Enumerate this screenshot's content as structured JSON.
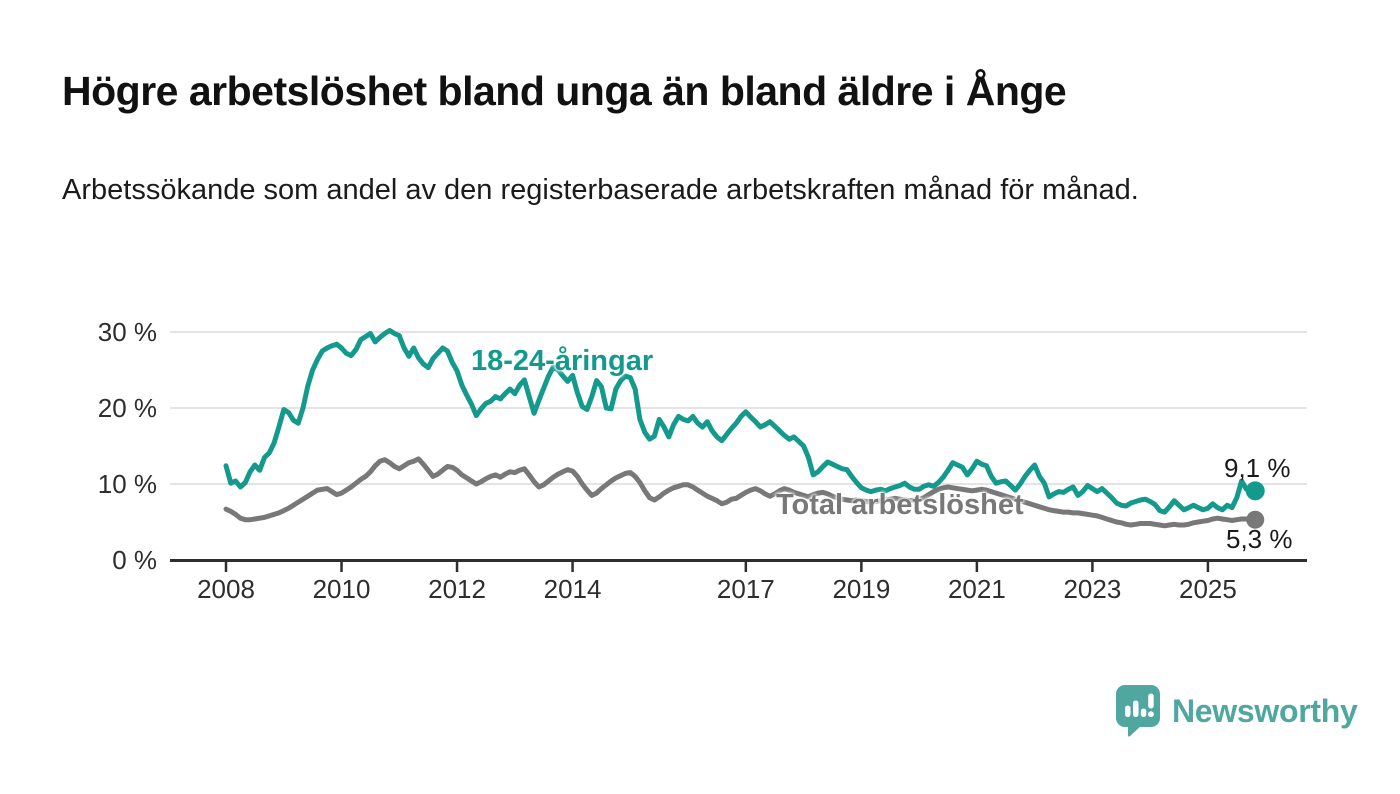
{
  "page": {
    "background": "#ffffff"
  },
  "header": {
    "title": "Högre arbetslöshet bland unga än bland äldre i Ånge",
    "subtitle": "Arbetssökande som andel av den registerbaserade arbetskraften månad för månad."
  },
  "footer": {
    "brand": "Newsworthy",
    "brand_color": "#4FA7A0",
    "logo_icon": "newsworthy-speech-bubble-with-bar-chart-and-exclamation"
  },
  "chart_data": {
    "type": "line",
    "title": "Högre arbetslöshet bland unga än bland äldre i Ånge",
    "xlabel": "",
    "ylabel": "",
    "x_start_year": 2008,
    "x_step_months": 1,
    "x_end_label_period": "2025 (oktober)",
    "grid": "horizontal",
    "legend": "inline-labels",
    "colors": {
      "grid": "#DBDBDB",
      "axis": "#2E2E2E",
      "tick_label": "#2E2E2E",
      "end_label": "#1A1A1A"
    },
    "y_axis": {
      "range": [
        0,
        31.5
      ],
      "ticks": [
        {
          "value": 0,
          "label": "0 %"
        },
        {
          "value": 10,
          "label": "10 %"
        },
        {
          "value": 20,
          "label": "20 %"
        },
        {
          "value": 30,
          "label": "30 %"
        }
      ]
    },
    "x_axis": {
      "ticks": [
        {
          "year": 2008,
          "label": "2008"
        },
        {
          "year": 2010,
          "label": "2010"
        },
        {
          "year": 2012,
          "label": "2012"
        },
        {
          "year": 2014,
          "label": "2014"
        },
        {
          "year": 2017,
          "label": "2017"
        },
        {
          "year": 2019,
          "label": "2019"
        },
        {
          "year": 2021,
          "label": "2021"
        },
        {
          "year": 2023,
          "label": "2023"
        },
        {
          "year": 2025,
          "label": "2025"
        }
      ]
    },
    "series": [
      {
        "name": "18-24-åringar",
        "color": "#149A8C",
        "end_label": "9,1 %",
        "end_value": 9.1,
        "values": [
          12.4,
          10.1,
          10.4,
          9.6,
          10.2,
          11.6,
          12.5,
          11.8,
          13.5,
          14.1,
          15.4,
          17.5,
          19.8,
          19.4,
          18.4,
          18.0,
          20.0,
          22.9,
          25.0,
          26.4,
          27.5,
          27.9,
          28.2,
          28.4,
          27.9,
          27.2,
          26.9,
          27.7,
          29.0,
          29.4,
          29.8,
          28.7,
          29.3,
          29.8,
          30.2,
          29.8,
          29.5,
          27.9,
          26.8,
          27.9,
          26.6,
          25.8,
          25.3,
          26.5,
          27.2,
          27.9,
          27.5,
          26.0,
          24.9,
          23.0,
          21.7,
          20.5,
          19.0,
          19.9,
          20.6,
          20.9,
          21.5,
          21.2,
          21.9,
          22.5,
          21.9,
          23.0,
          23.7,
          21.5,
          19.3,
          21.0,
          22.6,
          24.2,
          25.4,
          25.0,
          24.2,
          23.5,
          24.3,
          22.0,
          20.2,
          19.8,
          21.5,
          23.6,
          22.8,
          20.0,
          19.9,
          22.5,
          23.6,
          24.2,
          24.0,
          22.5,
          18.5,
          16.8,
          15.9,
          16.3,
          18.5,
          17.5,
          16.2,
          17.8,
          18.9,
          18.5,
          18.3,
          18.9,
          18.0,
          17.5,
          18.2,
          17.0,
          16.2,
          15.7,
          16.5,
          17.3,
          18.0,
          18.9,
          19.5,
          18.8,
          18.2,
          17.5,
          17.8,
          18.2,
          17.6,
          17.0,
          16.4,
          15.9,
          16.2,
          15.6,
          15.0,
          13.5,
          11.2,
          11.6,
          12.3,
          12.9,
          12.6,
          12.3,
          12.0,
          11.9,
          11.0,
          10.2,
          9.5,
          9.2,
          9.0,
          9.2,
          9.3,
          9.1,
          9.4,
          9.6,
          9.8,
          10.1,
          9.6,
          9.3,
          9.3,
          9.7,
          9.9,
          9.7,
          10.2,
          10.9,
          11.8,
          12.8,
          12.5,
          12.2,
          11.2,
          12.0,
          13.0,
          12.6,
          12.4,
          11.0,
          10.1,
          10.3,
          10.4,
          9.8,
          9.2,
          10.0,
          11.0,
          11.8,
          12.5,
          11.0,
          10.1,
          8.3,
          8.7,
          9.0,
          8.9,
          9.3,
          9.6,
          8.5,
          9.0,
          9.8,
          9.4,
          9.0,
          9.4,
          8.8,
          8.2,
          7.5,
          7.2,
          7.1,
          7.5,
          7.7,
          7.9,
          8.0,
          7.7,
          7.3,
          6.5,
          6.3,
          7.0,
          7.8,
          7.2,
          6.6,
          6.9,
          7.2,
          6.9,
          6.6,
          6.8,
          7.4,
          6.9,
          6.6,
          7.2,
          6.9,
          8.2,
          10.4,
          9.3,
          9.1
        ]
      },
      {
        "name": "Total arbetslöshet",
        "color": "#787878",
        "end_label": "5,3 %",
        "end_value": 5.3,
        "values": [
          6.7,
          6.4,
          6.0,
          5.5,
          5.3,
          5.3,
          5.4,
          5.5,
          5.6,
          5.8,
          6.0,
          6.2,
          6.5,
          6.8,
          7.2,
          7.6,
          8.0,
          8.4,
          8.8,
          9.2,
          9.3,
          9.4,
          9.0,
          8.6,
          8.8,
          9.2,
          9.6,
          10.1,
          10.6,
          11.0,
          11.6,
          12.4,
          13.0,
          13.2,
          12.8,
          12.3,
          12.0,
          12.4,
          12.8,
          13.0,
          13.3,
          12.6,
          11.8,
          11.0,
          11.3,
          11.8,
          12.3,
          12.2,
          11.8,
          11.2,
          10.8,
          10.4,
          10.0,
          10.3,
          10.7,
          11.0,
          11.2,
          10.9,
          11.3,
          11.6,
          11.5,
          11.8,
          12.0,
          11.2,
          10.3,
          9.6,
          9.9,
          10.4,
          10.9,
          11.3,
          11.6,
          11.9,
          11.7,
          11.0,
          10.0,
          9.2,
          8.5,
          8.8,
          9.4,
          9.9,
          10.4,
          10.8,
          11.1,
          11.4,
          11.5,
          11.0,
          10.2,
          9.1,
          8.2,
          7.9,
          8.3,
          8.8,
          9.2,
          9.5,
          9.7,
          9.9,
          9.9,
          9.6,
          9.2,
          8.8,
          8.4,
          8.1,
          7.8,
          7.4,
          7.6,
          8.0,
          8.1,
          8.5,
          8.9,
          9.2,
          9.4,
          9.1,
          8.7,
          8.4,
          8.7,
          9.1,
          9.4,
          9.2,
          8.9,
          8.7,
          8.5,
          8.3,
          8.6,
          8.8,
          8.9,
          8.7,
          8.4,
          8.2,
          8.0,
          7.9,
          7.8,
          7.9,
          7.8,
          7.7,
          7.6,
          7.7,
          7.8,
          7.9,
          8.0,
          8.1,
          8.0,
          7.9,
          7.8,
          7.9,
          8.0,
          8.2,
          8.6,
          9.0,
          9.3,
          9.5,
          9.6,
          9.5,
          9.4,
          9.3,
          9.2,
          9.1,
          9.2,
          9.3,
          9.2,
          9.0,
          8.8,
          8.6,
          8.4,
          8.2,
          8.0,
          7.8,
          7.6,
          7.4,
          7.2,
          7.0,
          6.8,
          6.6,
          6.5,
          6.4,
          6.3,
          6.3,
          6.2,
          6.2,
          6.1,
          6.0,
          5.9,
          5.8,
          5.6,
          5.4,
          5.2,
          5.0,
          4.9,
          4.7,
          4.6,
          4.7,
          4.8,
          4.8,
          4.8,
          4.7,
          4.6,
          4.5,
          4.6,
          4.7,
          4.6,
          4.6,
          4.7,
          4.9,
          5.0,
          5.1,
          5.2,
          5.4,
          5.5,
          5.4,
          5.3,
          5.2,
          5.3,
          5.4,
          5.4,
          5.3
        ]
      }
    ]
  }
}
